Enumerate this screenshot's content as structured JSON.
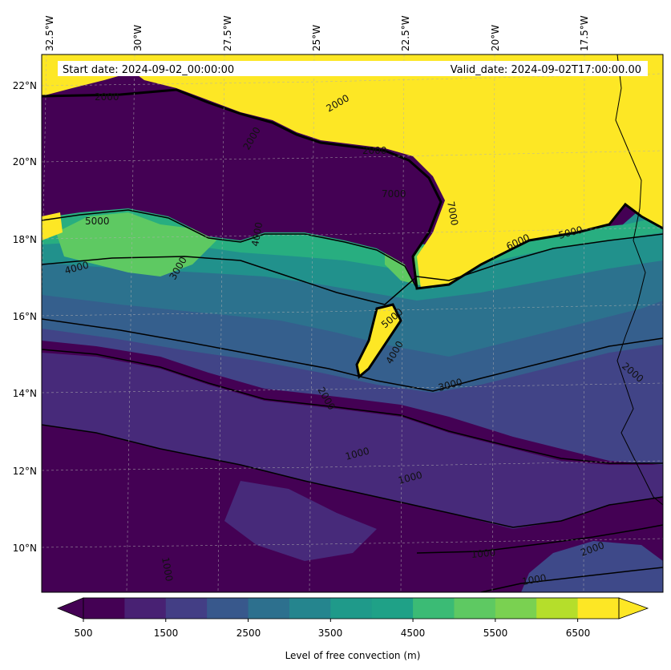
{
  "info": {
    "start_label": "Start date: 2024-09-02_00:00:00",
    "valid_label": "Valid_date: 2024-09-02T17:00:00.00"
  },
  "lon_labels": [
    "32.5°W",
    "30°W",
    "27.5°W",
    "25°W",
    "22.5°W",
    "20°W",
    "17.5°W"
  ],
  "lat_labels": [
    "22°N",
    "20°N",
    "18°N",
    "16°N",
    "14°N",
    "12°N",
    "10°N"
  ],
  "contour_labels": [
    "2000",
    "2000",
    "2000",
    "2000",
    "7000",
    "5000",
    "4000",
    "4000",
    "6000",
    "5000",
    "7000",
    "3000",
    "5000",
    "4000",
    "2000",
    "3000",
    "2000",
    "1000",
    "1000",
    "1000",
    "2000",
    "1000",
    "1000"
  ],
  "colorbar": {
    "title": "Level of free convection (m)",
    "tick_labels": [
      "500",
      "1500",
      "2500",
      "3500",
      "4500",
      "5500",
      "6500"
    ],
    "colors": [
      "#440154",
      "#482173",
      "#433e85",
      "#38588c",
      "#2d708e",
      "#25858e",
      "#1f9a8a",
      "#1fa187",
      "#3bbb75",
      "#5ec962",
      "#7ad151",
      "#b5de2b",
      "#fde725"
    ]
  },
  "chart_data": {
    "type": "heatmap",
    "variable": "Level of free convection",
    "units": "m",
    "levels": [
      500,
      1000,
      1500,
      2000,
      2500,
      3000,
      3500,
      4000,
      4500,
      5000,
      5500,
      6000,
      6500,
      7000
    ],
    "contour_levels": [
      1000,
      2000,
      3000,
      4000,
      5000,
      6000,
      7000
    ],
    "lon_ticks": [
      -32.5,
      -30,
      -27.5,
      -25,
      -22.5,
      -20,
      -17.5
    ],
    "lat_ticks": [
      22,
      20,
      18,
      16,
      14,
      12,
      10
    ],
    "lon_range": [
      -33,
      -15
    ],
    "lat_range": [
      9,
      23
    ],
    "grid": true
  }
}
